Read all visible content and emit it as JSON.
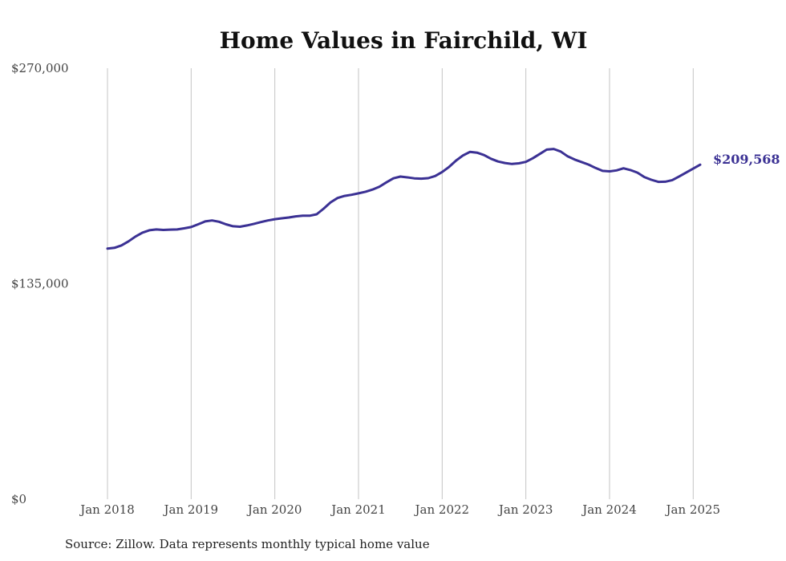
{
  "chart_data": {
    "type": "line",
    "title": "Home Values in Fairchild, WI",
    "source": "Source: Zillow. Data represents monthly typical home value",
    "ylim": [
      0,
      270000
    ],
    "yticks": [
      {
        "value": 0,
        "label": "$0"
      },
      {
        "value": 135000,
        "label": "$135,000"
      },
      {
        "value": 270000,
        "label": "$270,000"
      }
    ],
    "xticks": [
      {
        "date": "2018-01",
        "label": "Jan 2018"
      },
      {
        "date": "2019-01",
        "label": "Jan 2019"
      },
      {
        "date": "2020-01",
        "label": "Jan 2020"
      },
      {
        "date": "2021-01",
        "label": "Jan 2021"
      },
      {
        "date": "2022-01",
        "label": "Jan 2022"
      },
      {
        "date": "2023-01",
        "label": "Jan 2023"
      },
      {
        "date": "2024-01",
        "label": "Jan 2024"
      },
      {
        "date": "2025-01",
        "label": "Jan 2025"
      }
    ],
    "grid": "vertical",
    "line_color": "#3b3194",
    "end_label": "$209,568",
    "series": [
      {
        "points": [
          [
            "2018-01",
            157000
          ],
          [
            "2018-02",
            157500
          ],
          [
            "2018-03",
            159000
          ],
          [
            "2018-04",
            161500
          ],
          [
            "2018-05",
            164500
          ],
          [
            "2018-06",
            167000
          ],
          [
            "2018-07",
            168500
          ],
          [
            "2018-08",
            169000
          ],
          [
            "2018-09",
            168700
          ],
          [
            "2018-10",
            168900
          ],
          [
            "2018-11",
            169000
          ],
          [
            "2018-12",
            169700
          ],
          [
            "2019-01",
            170500
          ],
          [
            "2019-02",
            172200
          ],
          [
            "2019-03",
            174000
          ],
          [
            "2019-04",
            174600
          ],
          [
            "2019-05",
            173800
          ],
          [
            "2019-06",
            172200
          ],
          [
            "2019-07",
            171000
          ],
          [
            "2019-08",
            170700
          ],
          [
            "2019-09",
            171500
          ],
          [
            "2019-10",
            172500
          ],
          [
            "2019-11",
            173600
          ],
          [
            "2019-12",
            174600
          ],
          [
            "2020-01",
            175400
          ],
          [
            "2020-02",
            176000
          ],
          [
            "2020-03",
            176500
          ],
          [
            "2020-04",
            177200
          ],
          [
            "2020-05",
            177600
          ],
          [
            "2020-06",
            177600
          ],
          [
            "2020-07",
            178500
          ],
          [
            "2020-08",
            182000
          ],
          [
            "2020-09",
            186000
          ],
          [
            "2020-10",
            188700
          ],
          [
            "2020-11",
            190000
          ],
          [
            "2020-12",
            190700
          ],
          [
            "2021-01",
            191600
          ],
          [
            "2021-02",
            192600
          ],
          [
            "2021-03",
            194000
          ],
          [
            "2021-04",
            195800
          ],
          [
            "2021-05",
            198500
          ],
          [
            "2021-06",
            201000
          ],
          [
            "2021-07",
            202100
          ],
          [
            "2021-08",
            201600
          ],
          [
            "2021-09",
            201000
          ],
          [
            "2021-10",
            200800
          ],
          [
            "2021-11",
            201100
          ],
          [
            "2021-12",
            202500
          ],
          [
            "2022-01",
            205000
          ],
          [
            "2022-02",
            208200
          ],
          [
            "2022-03",
            212200
          ],
          [
            "2022-04",
            215400
          ],
          [
            "2022-05",
            217600
          ],
          [
            "2022-06",
            217100
          ],
          [
            "2022-07",
            215600
          ],
          [
            "2022-08",
            213300
          ],
          [
            "2022-09",
            211600
          ],
          [
            "2022-10",
            210600
          ],
          [
            "2022-11",
            210000
          ],
          [
            "2022-12",
            210400
          ],
          [
            "2023-01",
            211300
          ],
          [
            "2023-02",
            213600
          ],
          [
            "2023-03",
            216300
          ],
          [
            "2023-04",
            219000
          ],
          [
            "2023-05",
            219400
          ],
          [
            "2023-06",
            217800
          ],
          [
            "2023-07",
            214800
          ],
          [
            "2023-08",
            212800
          ],
          [
            "2023-09",
            211200
          ],
          [
            "2023-10",
            209600
          ],
          [
            "2023-11",
            207500
          ],
          [
            "2023-12",
            205700
          ],
          [
            "2024-01",
            205400
          ],
          [
            "2024-02",
            206000
          ],
          [
            "2024-03",
            207300
          ],
          [
            "2024-04",
            206200
          ],
          [
            "2024-05",
            204600
          ],
          [
            "2024-06",
            201800
          ],
          [
            "2024-07",
            200100
          ],
          [
            "2024-08",
            198800
          ],
          [
            "2024-09",
            198900
          ],
          [
            "2024-10",
            199900
          ],
          [
            "2024-11",
            202200
          ],
          [
            "2024-12",
            204700
          ],
          [
            "2025-01",
            207100
          ],
          [
            "2025-02",
            209568
          ]
        ]
      }
    ]
  }
}
